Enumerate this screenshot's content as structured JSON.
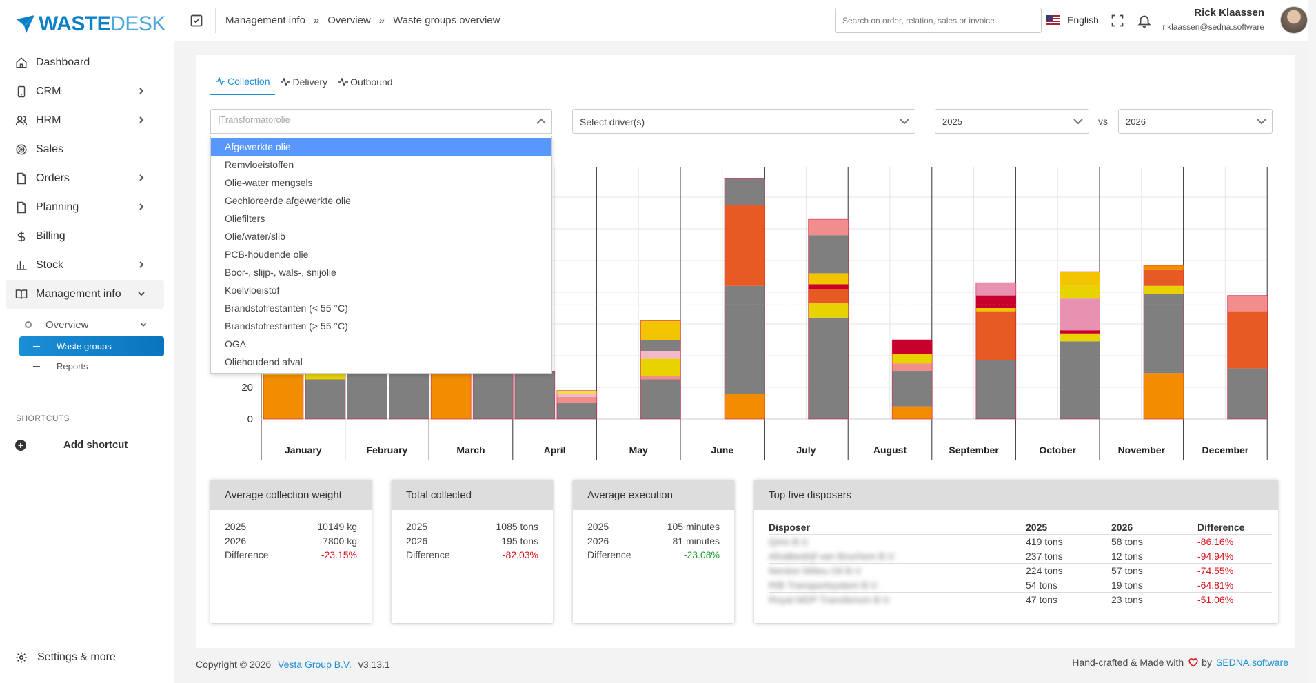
{
  "brand": {
    "part1": "WASTE",
    "part2": "DESK"
  },
  "sidebar": {
    "items": [
      {
        "label": "Dashboard",
        "icon": "home-icon",
        "expandable": false
      },
      {
        "label": "CRM",
        "icon": "phone-icon",
        "expandable": true
      },
      {
        "label": "HRM",
        "icon": "users-icon",
        "expandable": true
      },
      {
        "label": "Sales",
        "icon": "target-icon",
        "expandable": false
      },
      {
        "label": "Orders",
        "icon": "document-icon",
        "expandable": true
      },
      {
        "label": "Planning",
        "icon": "document-icon",
        "expandable": true
      },
      {
        "label": "Billing",
        "icon": "dollar-icon",
        "expandable": false
      },
      {
        "label": "Stock",
        "icon": "bar-chart-icon",
        "expandable": true
      },
      {
        "label": "Management info",
        "icon": "book-icon",
        "expandable": true
      }
    ],
    "sub": {
      "label": "Overview"
    },
    "subsub": [
      {
        "label": "Waste groups",
        "active": true
      },
      {
        "label": "Reports",
        "active": false
      }
    ],
    "shortcuts_heading": "SHORTCUTS",
    "add_shortcut": "Add shortcut",
    "settings": "Settings & more"
  },
  "topbar": {
    "breadcrumb": [
      "Management info",
      "Overview",
      "Waste groups overview"
    ],
    "search_placeholder": "Search on order, relation, sales or invoice",
    "language": "English",
    "user_name": "Rick Klaassen",
    "user_email": "r.klaassen@sedna.software"
  },
  "tabs": [
    {
      "label": "Collection",
      "active": true
    },
    {
      "label": "Delivery",
      "active": false
    },
    {
      "label": "Outbound",
      "active": false
    }
  ],
  "filters": {
    "waste_group_placeholder": "Transformatorolie",
    "driver_placeholder": "Select driver(s)",
    "year_a": "2025",
    "vs": "vs",
    "year_b": "2026"
  },
  "dropdown_options": [
    "Afgewerkte olie",
    "Remvloeistoffen",
    "Olie-water mengsels",
    "Gechloreerde afgewerkte olie",
    "Oliefilters",
    "Olie/water/slib",
    "PCB-houdende olie",
    "Boor-, slijp-, wals-, snijolie",
    "Koelvloeistof",
    "Brandstofrestanten (< 55 °C)",
    "Brandstofrestanten (> 55 °C)",
    "OGA",
    "Oliehoudend afval"
  ],
  "dropdown_selected": "Afgewerkte olie",
  "chart_data": {
    "type": "bar",
    "stacked": true,
    "categories": [
      "January",
      "February",
      "March",
      "April",
      "May",
      "June",
      "July",
      "August",
      "September",
      "October",
      "November",
      "December"
    ],
    "yticks": [
      0,
      20
    ],
    "ylim": [
      0,
      160
    ],
    "grid": true,
    "months": [
      {
        "a": [
          {
            "c": "#f28c00",
            "v": 28
          },
          {
            "c": "#e8d300",
            "v": 3
          }
        ],
        "b": [
          {
            "c": "#7f7f7f",
            "v": 25
          },
          {
            "c": "#e8d300",
            "v": 4
          }
        ]
      },
      {
        "a": [
          {
            "c": "#7f7f7f",
            "v": 30
          }
        ],
        "b": [
          {
            "c": "#7f7f7f",
            "v": 30
          }
        ]
      },
      {
        "a": [
          {
            "c": "#f28c00",
            "v": 30
          }
        ],
        "b": [
          {
            "c": "#7f7f7f",
            "v": 30
          }
        ]
      },
      {
        "a": [
          {
            "c": "#7f7f7f",
            "v": 30
          }
        ],
        "b": [
          {
            "c": "#7f7f7f",
            "v": 10
          },
          {
            "c": "#f28d8d",
            "v": 4
          },
          {
            "c": "#f2b8c6",
            "v": 2
          },
          {
            "c": "#f2de4a",
            "v": 2
          }
        ]
      },
      {
        "a": [],
        "b": [
          {
            "c": "#7f7f7f",
            "v": 25
          },
          {
            "c": "#f28d8d",
            "v": 2
          },
          {
            "c": "#e8d300",
            "v": 11
          },
          {
            "c": "#f2b8c6",
            "v": 5
          },
          {
            "c": "#7f7f7f",
            "v": 7
          },
          {
            "c": "#f2c500",
            "v": 12
          }
        ]
      },
      {
        "a": [],
        "b": [
          {
            "c": "#f28c00",
            "v": 16
          },
          {
            "c": "#7f7f7f",
            "v": 68
          },
          {
            "c": "#e85a24",
            "v": 51
          },
          {
            "c": "#7f7f7f",
            "v": 17
          }
        ]
      },
      {
        "a": [],
        "b": [
          {
            "c": "#7f7f7f",
            "v": 64
          },
          {
            "c": "#e8d300",
            "v": 9
          },
          {
            "c": "#e85a24",
            "v": 9
          },
          {
            "c": "#c8002d",
            "v": 3
          },
          {
            "c": "#f2c500",
            "v": 7
          },
          {
            "c": "#7f7f7f",
            "v": 24
          },
          {
            "c": "#f28d8d",
            "v": 10
          }
        ]
      },
      {
        "a": [],
        "b": [
          {
            "c": "#f28c00",
            "v": 8
          },
          {
            "c": "#7f7f7f",
            "v": 22
          },
          {
            "c": "#f28d8d",
            "v": 5
          },
          {
            "c": "#e8d300",
            "v": 6
          },
          {
            "c": "#c8002d",
            "v": 9
          }
        ]
      },
      {
        "a": [],
        "b": [
          {
            "c": "#7f7f7f",
            "v": 37
          },
          {
            "c": "#e85a24",
            "v": 31
          },
          {
            "c": "#f2c500",
            "v": 2
          },
          {
            "c": "#c8002d",
            "v": 8
          },
          {
            "c": "#e891b0",
            "v": 8
          }
        ]
      },
      {
        "a": [],
        "b": [
          {
            "c": "#7f7f7f",
            "v": 49
          },
          {
            "c": "#e8d300",
            "v": 5
          },
          {
            "c": "#c8002d",
            "v": 2
          },
          {
            "c": "#e891b0",
            "v": 20
          },
          {
            "c": "#e8d300",
            "v": 8
          },
          {
            "c": "#f2c500",
            "v": 9
          }
        ]
      },
      {
        "a": [],
        "b": [
          {
            "c": "#f28c00",
            "v": 29
          },
          {
            "c": "#7f7f7f",
            "v": 50
          },
          {
            "c": "#e8d300",
            "v": 5
          },
          {
            "c": "#e85a24",
            "v": 10
          },
          {
            "c": "#f28c00",
            "v": 3
          }
        ]
      },
      {
        "a": [],
        "b": [
          {
            "c": "#7f7f7f",
            "v": 32
          },
          {
            "c": "#e85a24",
            "v": 36
          },
          {
            "c": "#f28d8d",
            "v": 10
          }
        ]
      }
    ]
  },
  "stats": [
    {
      "title": "Average collection weight",
      "rows": [
        {
          "k": "2025",
          "v": "10149 kg"
        },
        {
          "k": "2026",
          "v": "7800 kg"
        },
        {
          "k": "Difference",
          "v": "-23.15%",
          "tone": "neg"
        }
      ]
    },
    {
      "title": "Total collected",
      "rows": [
        {
          "k": "2025",
          "v": "1085 tons"
        },
        {
          "k": "2026",
          "v": "195 tons"
        },
        {
          "k": "Difference",
          "v": "-82.03%",
          "tone": "neg"
        }
      ]
    },
    {
      "title": "Average execution",
      "rows": [
        {
          "k": "2025",
          "v": "105 minutes"
        },
        {
          "k": "2026",
          "v": "81 minutes"
        },
        {
          "k": "Difference",
          "v": "-23.08%",
          "tone": "pos"
        }
      ]
    }
  ],
  "top5": {
    "title": "Top five disposers",
    "headers": [
      "Disposer",
      "2025",
      "2026",
      "Difference"
    ],
    "rows": [
      {
        "name": "Qmn B.V.",
        "a": "419 tons",
        "b": "58 tons",
        "d": "-86.16%"
      },
      {
        "name": "Afvalbedrijf van Bruchem B.V.",
        "a": "237 tons",
        "b": "12 tons",
        "d": "-94.94%"
      },
      {
        "name": "Nerdon Milieu Oil B.V.",
        "a": "224 tons",
        "b": "57 tons",
        "d": "-74.55%"
      },
      {
        "name": "RIB Transportsystem B.V.",
        "a": "54 tons",
        "b": "19 tons",
        "d": "-64.81%"
      },
      {
        "name": "Royal MDP Transferium B.V.",
        "a": "47 tons",
        "b": "23 tons",
        "d": "-51.06%"
      }
    ]
  },
  "footer": {
    "copyright": "Copyright © 2026",
    "company": "Vesta Group B.V.",
    "version": "v3.13.1",
    "made_with": "Hand-crafted & Made with",
    "by": "by",
    "vendor": "SEDNA.software"
  },
  "colors": {
    "accent": "#1a8fd6",
    "selected_option": "#5897fb",
    "negative": "#d9121a",
    "positive": "#1a9a2a"
  }
}
